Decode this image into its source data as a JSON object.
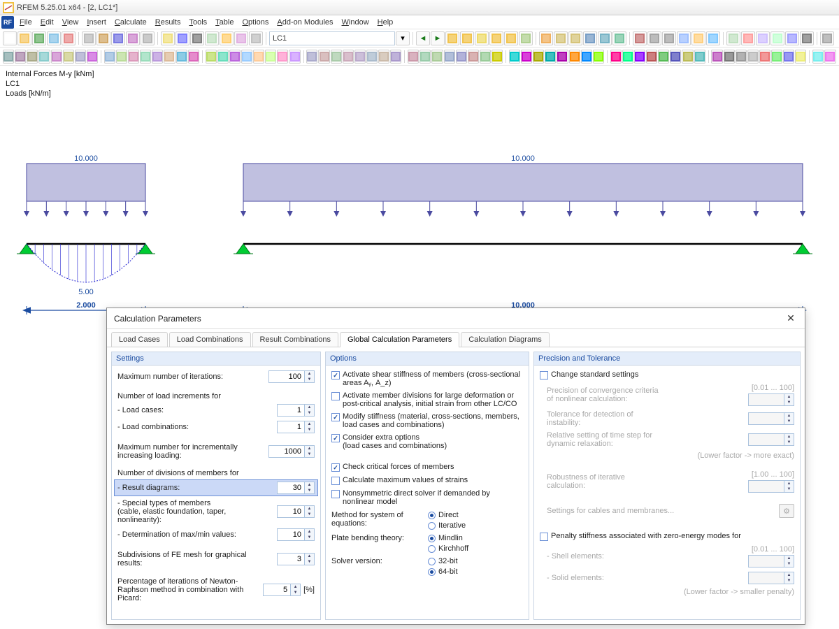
{
  "app": {
    "title": "RFEM 5.25.01 x64 - [2, LC1*]"
  },
  "menu": [
    "File",
    "Edit",
    "View",
    "Insert",
    "Calculate",
    "Results",
    "Tools",
    "Table",
    "Options",
    "Add-on Modules",
    "Window",
    "Help"
  ],
  "toolbars": {
    "row1": {
      "selector": "LC1",
      "btn_colors": [
        "#fff",
        "#f6c969",
        "#6db26d",
        "#8cc6e8",
        "#e88c8c",
        "#bdbdbd",
        "#d2a868",
        "#7a7ae2",
        "#cc88cc",
        "#b8b8b8",
        "#f0e080",
        "#8080ff",
        "#808080",
        "#c0e0c0",
        "#ffcf70",
        "#e2b0e2",
        "#c0c0c0"
      ],
      "tail_colors": [
        "#f2c44e",
        "#f2c44e",
        "#eedb6a",
        "#f2c44e",
        "#f2c44e",
        "#b0d090",
        "#f0b060",
        "#d6c47a",
        "#d6c47a",
        "#789ec6",
        "#78b4c6",
        "#78c6a2",
        "#c67878",
        "#a6a6a6",
        "#a6a6a6",
        "#a0c0ff",
        "#ffd080",
        "#80c8ff",
        "#c0e0c0",
        "#ffa0a0",
        "#d0c0ff",
        "#c0ffd0",
        "#a0a0ff",
        "#808080",
        "#a8a8a8"
      ]
    },
    "row2": {
      "colors": [
        "#8aa",
        "#a8a",
        "#aa8",
        "#8cc",
        "#c8c",
        "#cc8",
        "#aac",
        "#c6d",
        "#9bd",
        "#bd9",
        "#d9b",
        "#9db",
        "#b9d",
        "#db9",
        "#6bd",
        "#d6b",
        "#bd6",
        "#6db",
        "#b6d",
        "#9cf",
        "#fc9",
        "#cf9",
        "#f9c",
        "#c9f",
        "#aac",
        "#caa",
        "#aca",
        "#cab",
        "#bac",
        "#abc",
        "#cba",
        "#a9c",
        "#c9a",
        "#9ca",
        "#ac9",
        "#9ac",
        "#99c",
        "#c99",
        "#9c9",
        "#cc0",
        "#0cc",
        "#c0c",
        "#aa0",
        "#0aa",
        "#a0a",
        "#f80",
        "#08f",
        "#8f0",
        "#f08",
        "#0f8",
        "#80f",
        "#b55",
        "#5b5",
        "#55b",
        "#bb5",
        "#5bb",
        "#b5b",
        "#777",
        "#999",
        "#bbb",
        "#e77",
        "#7e7",
        "#77e",
        "#ee7",
        "#7ee",
        "#e7e"
      ]
    }
  },
  "viewport": {
    "lines": [
      "Internal Forces M-y [kNm]",
      "LC1",
      "Loads [kN/m]"
    ],
    "load_value_left": "10.000",
    "load_value_right": "10.000",
    "dim_left": "2.000",
    "dim_right": "10.000",
    "moment_value": "5.00",
    "colors": {
      "member": "#0a1a7a",
      "load_fill": "#c0c0e0",
      "load_stroke": "#4a4aa0",
      "support": "#00cc33",
      "dim": "#1a4ba0",
      "moment": "#2020d0"
    }
  },
  "dialog": {
    "title": "Calculation Parameters",
    "tabs": [
      "Load Cases",
      "Load Combinations",
      "Result Combinations",
      "Global Calculation Parameters",
      "Calculation Diagrams"
    ],
    "active_tab": 3,
    "settings": {
      "heading": "Settings",
      "max_iter_label": "Maximum number of iterations:",
      "max_iter": "100",
      "incr_heading": "Number of load increments for",
      "lc_label": "- Load cases:",
      "lc": "1",
      "lco_label": "- Load combinations:",
      "lco": "1",
      "max_inc_label": "Maximum number for incrementally increasing loading:",
      "max_inc": "1000",
      "div_heading": "Number of divisions of members for",
      "res_diag_label": "- Result diagrams:",
      "res_diag": "30",
      "special_label": "- Special types of members\n  (cable, elastic foundation, taper,\n  nonlinearity):",
      "special": "10",
      "maxmin_label": "- Determination of max/min values:",
      "maxmin": "10",
      "fe_label": "Subdivisions of FE mesh for graphical results:",
      "fe": "3",
      "picard_label": "Percentage of iterations of Newton-Raphson method in combination with Picard:",
      "picard": "5",
      "picard_unit": "[%]"
    },
    "options": {
      "heading": "Options",
      "o1": "Activate shear stiffness of members (cross-sectional areas Aᵧ, A_z)",
      "o2": "Activate member divisions for large deformation or post-critical analysis, initial strain from other LC/CO",
      "o3": "Modify stiffness (material, cross-sections, members, load cases and combinations)",
      "o4": "Consider extra options\n(load cases and combinations)",
      "o5": "Check critical forces of members",
      "o6": "Calculate maximum values of strains",
      "o7": "Nonsymmetric direct solver if demanded by nonlinear model",
      "sys_eq_label": "Method for system of equations:",
      "r_direct": "Direct",
      "r_iter": "Iterative",
      "plate_label": "Plate bending theory:",
      "r_mindlin": "Mindlin",
      "r_kirch": "Kirchhoff",
      "solver_label": "Solver version:",
      "r_32": "32-bit",
      "r_64": "64-bit"
    },
    "prec": {
      "heading": "Precision and Tolerance",
      "change": "Change standard settings",
      "range1": "[0.01 ... 100]",
      "p1": "Precision of convergence criteria of nonlinear calculation:",
      "p2": "Tolerance for detection of instability:",
      "p3": "Relative setting of time step for dynamic relaxation:",
      "hint1": "(Lower factor -> more exact)",
      "range2": "[1.00 ... 100]",
      "p4": "Robustness of iterative calculation:",
      "cables": "Settings for cables and membranes...",
      "penalty": "Penalty stiffness associated with zero-energy modes for",
      "range3": "[0.01 ... 100]",
      "pe1": "- Shell elements:",
      "pe2": "- Solid elements:",
      "hint2": "(Lower factor -> smaller penalty)"
    }
  }
}
